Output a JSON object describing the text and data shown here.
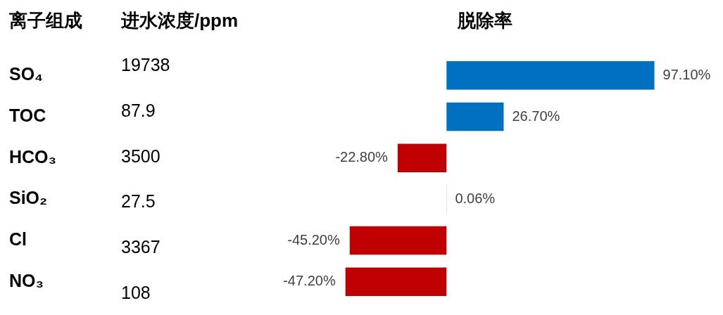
{
  "chart_data": [
    {
      "type": "bar",
      "orientation": "horizontal",
      "title": "脱除率",
      "ylabel": "离子组成",
      "categories": [
        "SO₄",
        "TOC",
        "HCO₃",
        "SiO₂",
        "Cl",
        "NO₃"
      ],
      "values": [
        97.1,
        26.7,
        -22.8,
        0.06,
        -45.2,
        -47.2
      ],
      "colors": [
        "#0070c0",
        "#0070c0",
        "#c00000",
        "#0070c0",
        "#c00000",
        "#c00000"
      ],
      "value_labels": [
        "97.10%",
        "26.70%",
        "-22.80%",
        "0.06%",
        "-45.20%",
        "-47.20%"
      ]
    },
    {
      "type": "other",
      "title": "进水浓度/ppm",
      "annotations": [
        "19738",
        "87.9",
        "3500",
        "27.5",
        "3367",
        "108"
      ]
    }
  ]
}
